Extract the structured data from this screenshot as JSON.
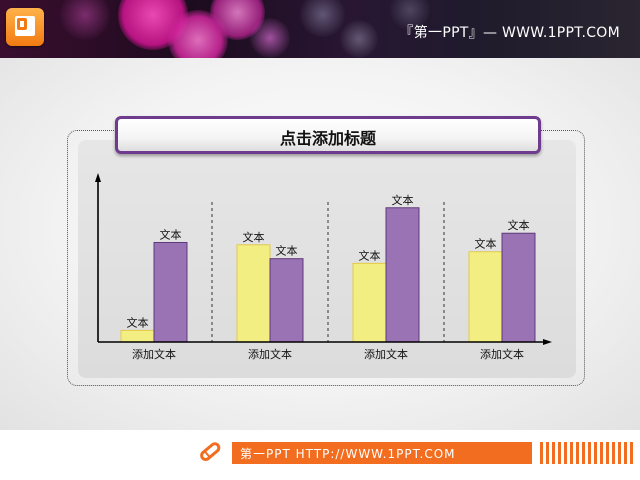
{
  "header": {
    "text": "『第一PPT』— WWW.1PPT.COM"
  },
  "slide": {
    "title": "点击添加标题"
  },
  "footer": {
    "text": "第一PPT HTTP://WWW.1PPT.COM"
  },
  "colors": {
    "yellow": "#f3ee82",
    "purple": "#9a73b5",
    "accent": "#f26d1f",
    "frame": "#6f3b8f"
  },
  "chart_data": {
    "type": "bar",
    "categories": [
      "添加文本",
      "添加文本",
      "添加文本",
      "添加文本"
    ],
    "series": [
      {
        "values": [
          5,
          42,
          34,
          39
        ],
        "labels": [
          "文本",
          "文本",
          "文本",
          "文本"
        ]
      },
      {
        "values": [
          43,
          36,
          58,
          47
        ],
        "labels": [
          "文本",
          "文本",
          "文本",
          "文本"
        ]
      }
    ],
    "ylim": [
      0,
      70
    ],
    "grid": false,
    "legend": "none",
    "group_separators": "dashed"
  }
}
